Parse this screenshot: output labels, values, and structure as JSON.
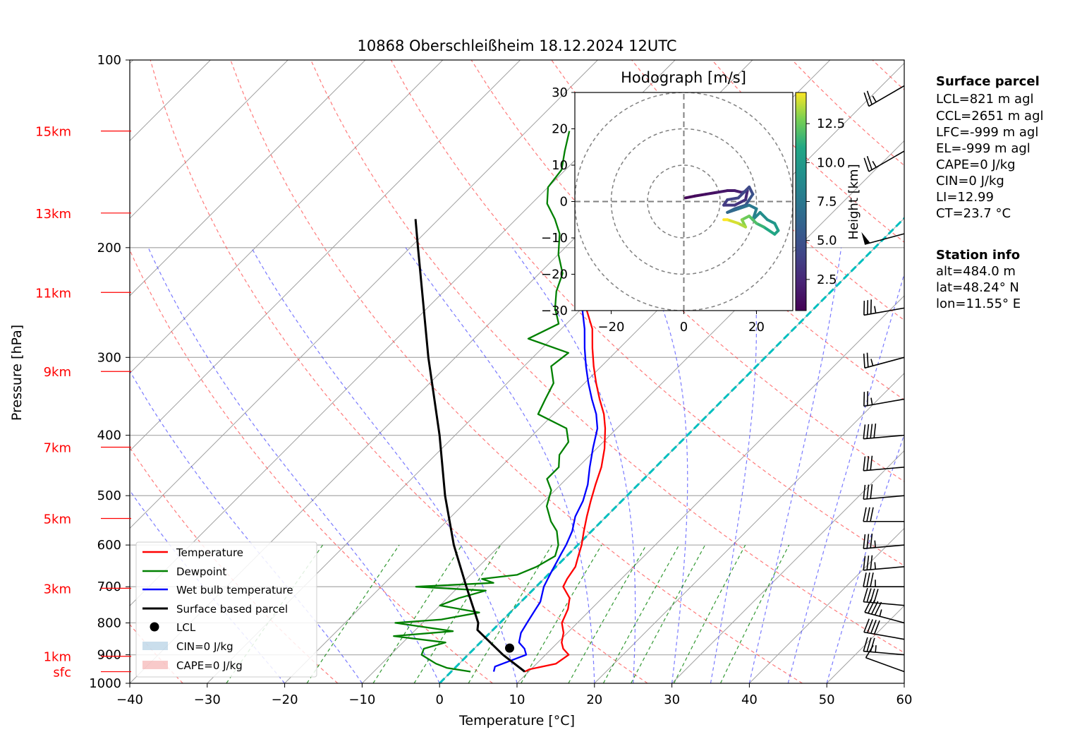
{
  "chart_data": {
    "type": "line",
    "title": "10868 Oberschleißheim 18.12.2024 12UTC",
    "xlabel": "Temperature [°C]",
    "ylabel": "Pressure [hPa]",
    "xlim": [
      -40,
      60
    ],
    "ylim": [
      1000,
      100
    ],
    "y_scale": "log",
    "skew": true,
    "grid": true,
    "x_ticks": [
      "−40",
      "−30",
      "−20",
      "−10",
      "0",
      "10",
      "20",
      "30",
      "40",
      "50",
      "60"
    ],
    "y_ticks": [
      {
        "p": 100,
        "label": "100"
      },
      {
        "p": 200,
        "label": "200"
      },
      {
        "p": 300,
        "label": "300"
      },
      {
        "p": 400,
        "label": "400"
      },
      {
        "p": 500,
        "label": "500"
      },
      {
        "p": 600,
        "label": "600"
      },
      {
        "p": 700,
        "label": "700"
      },
      {
        "p": 800,
        "label": "800"
      },
      {
        "p": 900,
        "label": "900"
      },
      {
        "p": 1000,
        "label": "1000"
      }
    ],
    "height_ticks": [
      {
        "p": 958,
        "label": "sfc"
      },
      {
        "p": 905,
        "label": "1km"
      },
      {
        "p": 704,
        "label": "3km"
      },
      {
        "p": 544,
        "label": "5km"
      },
      {
        "p": 418,
        "label": "7km"
      },
      {
        "p": 316,
        "label": "9km"
      },
      {
        "p": 236,
        "label": "11km"
      },
      {
        "p": 176,
        "label": "13km"
      },
      {
        "p": 130,
        "label": "15km"
      }
    ],
    "dry_adiabats_theta": [
      240,
      260,
      280,
      300,
      320,
      340,
      360,
      380,
      400,
      420,
      440,
      460,
      480,
      500,
      520,
      540
    ],
    "moist_adiabats_start_T": [
      -20,
      -10,
      0,
      10,
      20,
      25,
      30,
      35,
      40,
      45,
      50
    ],
    "mixing_ratios": [
      0.4,
      1,
      2,
      3,
      5,
      8,
      12,
      16,
      20,
      28,
      40
    ],
    "series": [
      {
        "name": "Temperature",
        "color": "#ff0000",
        "points": [
          [
            958,
            9.5
          ],
          [
            950,
            9.8
          ],
          [
            930,
            12.5
          ],
          [
            900,
            13
          ],
          [
            880,
            11.5
          ],
          [
            860,
            10.5
          ],
          [
            830,
            9.5
          ],
          [
            800,
            8.0
          ],
          [
            760,
            7.0
          ],
          [
            730,
            5.8
          ],
          [
            700,
            3.5
          ],
          [
            680,
            3.0
          ],
          [
            650,
            2.5
          ],
          [
            625,
            1.5
          ],
          [
            600,
            0.5
          ],
          [
            570,
            -1.0
          ],
          [
            540,
            -2.5
          ],
          [
            510,
            -4.0
          ],
          [
            480,
            -5.5
          ],
          [
            450,
            -7.0
          ],
          [
            420,
            -9.0
          ],
          [
            390,
            -11.5
          ],
          [
            370,
            -13.5
          ],
          [
            350,
            -16.0
          ],
          [
            330,
            -18.5
          ],
          [
            310,
            -21.0
          ],
          [
            290,
            -23.5
          ],
          [
            270,
            -26.0
          ],
          [
            250,
            -29.5
          ],
          [
            230,
            -33.0
          ],
          [
            215,
            -35.5
          ],
          [
            200,
            -36.0
          ],
          [
            185,
            -35.8
          ],
          [
            170,
            -35.5
          ],
          [
            160,
            -34.5
          ],
          [
            150,
            -34.2
          ],
          [
            145,
            -35.0
          ],
          [
            140,
            -33.5
          ],
          [
            133,
            -33.5
          ],
          [
            125,
            -33.0
          ],
          [
            115,
            -32.5
          ]
        ]
      },
      {
        "name": "Dewpoint",
        "color": "#008000",
        "points": [
          [
            958,
            2.5
          ],
          [
            945,
            -1.0
          ],
          [
            930,
            -3.0
          ],
          [
            900,
            -6.0
          ],
          [
            880,
            -6.5
          ],
          [
            860,
            -4.5
          ],
          [
            840,
            -12.0
          ],
          [
            825,
            -5.0
          ],
          [
            800,
            -13.5
          ],
          [
            790,
            -8.0
          ],
          [
            770,
            -4.0
          ],
          [
            750,
            -10.0
          ],
          [
            730,
            -8.5
          ],
          [
            710,
            -6.0
          ],
          [
            700,
            -15.5
          ],
          [
            690,
            -6.0
          ],
          [
            680,
            -8.0
          ],
          [
            670,
            -4.0
          ],
          [
            650,
            -2.5
          ],
          [
            625,
            -1.5
          ],
          [
            600,
            -2.5
          ],
          [
            570,
            -4.5
          ],
          [
            550,
            -6.5
          ],
          [
            520,
            -9.0
          ],
          [
            490,
            -10.5
          ],
          [
            470,
            -12.5
          ],
          [
            450,
            -12.5
          ],
          [
            430,
            -14.0
          ],
          [
            410,
            -14.5
          ],
          [
            390,
            -16.5
          ],
          [
            370,
            -22.0
          ],
          [
            350,
            -23.0
          ],
          [
            330,
            -24.0
          ],
          [
            310,
            -26.5
          ],
          [
            295,
            -26.0
          ],
          [
            280,
            -33.0
          ],
          [
            265,
            -31.0
          ],
          [
            250,
            -33.5
          ],
          [
            235,
            -35.5
          ],
          [
            220,
            -37.0
          ],
          [
            205,
            -40.0
          ],
          [
            190,
            -42.5
          ],
          [
            180,
            -45.0
          ],
          [
            170,
            -48.0
          ],
          [
            160,
            -50.0
          ],
          [
            150,
            -50.5
          ],
          [
            140,
            -52.5
          ],
          [
            130,
            -54.5
          ]
        ]
      },
      {
        "name": "Wet bulb temperature",
        "color": "#0000ff",
        "points": [
          [
            958,
            5.5
          ],
          [
            940,
            5.0
          ],
          [
            900,
            7.5
          ],
          [
            880,
            6.5
          ],
          [
            860,
            5.0
          ],
          [
            830,
            4.0
          ],
          [
            800,
            3.5
          ],
          [
            770,
            3.0
          ],
          [
            740,
            2.5
          ],
          [
            700,
            1.0
          ],
          [
            680,
            0.5
          ],
          [
            660,
            0.0
          ],
          [
            640,
            -0.5
          ],
          [
            620,
            -1.0
          ],
          [
            600,
            -1.5
          ],
          [
            570,
            -2.5
          ],
          [
            540,
            -4.0
          ],
          [
            510,
            -5.0
          ],
          [
            480,
            -6.5
          ],
          [
            450,
            -8.5
          ],
          [
            420,
            -10.5
          ],
          [
            390,
            -12.5
          ],
          [
            370,
            -14.5
          ],
          [
            350,
            -17.0
          ],
          [
            330,
            -19.5
          ],
          [
            310,
            -22.0
          ],
          [
            290,
            -24.5
          ],
          [
            270,
            -27.0
          ],
          [
            250,
            -30.0
          ],
          [
            230,
            -33.5
          ],
          [
            215,
            -36.0
          ],
          [
            200,
            -36.5
          ],
          [
            185,
            -36.2
          ],
          [
            170,
            -36.0
          ],
          [
            160,
            -35.0
          ],
          [
            150,
            -34.8
          ],
          [
            145,
            -35.5
          ],
          [
            140,
            -34.0
          ],
          [
            133,
            -34.0
          ],
          [
            125,
            -33.5
          ],
          [
            115,
            -33.0
          ]
        ]
      },
      {
        "name": "Surface based parcel",
        "color": "#000000",
        "points": [
          [
            958,
            9.5
          ],
          [
            900,
            4.5
          ],
          [
            821,
            -2.0
          ],
          [
            800,
            -2.8
          ],
          [
            700,
            -9.0
          ],
          [
            600,
            -16.0
          ],
          [
            500,
            -23.5
          ],
          [
            400,
            -32.0
          ],
          [
            300,
            -43.5
          ],
          [
            200,
            -59.0
          ],
          [
            180,
            -63.0
          ]
        ]
      }
    ],
    "freezing_level_color": "#00bfbf",
    "lcl": {
      "p": 878,
      "t": 4.5,
      "label": "LCL"
    },
    "legend": {
      "placement": "lower-left",
      "entries": [
        "Temperature",
        "Dewpoint",
        "Wet bulb temperature",
        "Surface based parcel",
        "LCL",
        "CIN=0 J/kg",
        "CAPE=0 J/kg"
      ]
    },
    "wind_barbs": [
      {
        "p": 958,
        "speed": 10,
        "dir": 250
      },
      {
        "p": 900,
        "speed": 35,
        "dir": 265
      },
      {
        "p": 850,
        "speed": 40,
        "dir": 260
      },
      {
        "p": 800,
        "speed": 45,
        "dir": 255
      },
      {
        "p": 750,
        "speed": 40,
        "dir": 265
      },
      {
        "p": 700,
        "speed": 35,
        "dir": 270
      },
      {
        "p": 650,
        "speed": 35,
        "dir": 275
      },
      {
        "p": 600,
        "speed": 35,
        "dir": 275
      },
      {
        "p": 550,
        "speed": 30,
        "dir": 270
      },
      {
        "p": 500,
        "speed": 30,
        "dir": 275
      },
      {
        "p": 450,
        "speed": 30,
        "dir": 275
      },
      {
        "p": 400,
        "speed": 40,
        "dir": 275
      },
      {
        "p": 350,
        "speed": 25,
        "dir": 280
      },
      {
        "p": 300,
        "speed": 25,
        "dir": 285
      },
      {
        "p": 250,
        "speed": 35,
        "dir": 280
      },
      {
        "p": 190,
        "speed": 50,
        "dir": 285
      },
      {
        "p": 140,
        "speed": 25,
        "dir": 300
      },
      {
        "p": 110,
        "speed": 25,
        "dir": 300
      }
    ],
    "hodograph": {
      "title": "Hodograph [m/s]",
      "xlim": [
        -30,
        30
      ],
      "ylim": [
        -30,
        30
      ],
      "rings": [
        10,
        20,
        30
      ],
      "x_ticks": [
        "−20",
        "0",
        "20"
      ],
      "y_ticks": [
        "30",
        "20",
        "10",
        "0",
        "−10",
        "−20",
        "−30"
      ],
      "colorbar_label": "Height [km]",
      "colorbar_ticks": [
        "2.5",
        "5.0",
        "7.5",
        "10.0",
        "12.5"
      ],
      "colorbar_range": [
        0.5,
        14.5
      ],
      "points": [
        {
          "u": 0.5,
          "v": 1,
          "h": 0.5
        },
        {
          "u": 3,
          "v": 1.5,
          "h": 0.8
        },
        {
          "u": 6,
          "v": 2,
          "h": 1.0
        },
        {
          "u": 9,
          "v": 2.5,
          "h": 1.3
        },
        {
          "u": 12,
          "v": 3,
          "h": 1.6
        },
        {
          "u": 14,
          "v": 3,
          "h": 1.8
        },
        {
          "u": 16,
          "v": 2.5,
          "h": 2.0
        },
        {
          "u": 17.5,
          "v": 3,
          "h": 2.3
        },
        {
          "u": 17,
          "v": 0.5,
          "h": 2.6
        },
        {
          "u": 14,
          "v": -1,
          "h": 3.0
        },
        {
          "u": 11,
          "v": -1,
          "h": 3.3
        },
        {
          "u": 12,
          "v": 0.5,
          "h": 3.6
        },
        {
          "u": 15,
          "v": 1,
          "h": 3.9
        },
        {
          "u": 18,
          "v": 4,
          "h": 4.2
        },
        {
          "u": 19,
          "v": 2,
          "h": 4.5
        },
        {
          "u": 17,
          "v": -1,
          "h": 5.0
        },
        {
          "u": 14,
          "v": -2,
          "h": 5.5
        },
        {
          "u": 12,
          "v": -3,
          "h": 6.0
        },
        {
          "u": 15,
          "v": -2,
          "h": 6.5
        },
        {
          "u": 18,
          "v": -1,
          "h": 7.0
        },
        {
          "u": 20,
          "v": -2,
          "h": 7.5
        },
        {
          "u": 19,
          "v": -5,
          "h": 8.0
        },
        {
          "u": 21,
          "v": -3,
          "h": 8.5
        },
        {
          "u": 23,
          "v": -5,
          "h": 9.0
        },
        {
          "u": 25,
          "v": -6,
          "h": 9.5
        },
        {
          "u": 26,
          "v": -8,
          "h": 10.0
        },
        {
          "u": 25,
          "v": -9,
          "h": 10.5
        },
        {
          "u": 22,
          "v": -7,
          "h": 11.0
        },
        {
          "u": 20,
          "v": -6,
          "h": 11.5
        },
        {
          "u": 18,
          "v": -4,
          "h": 12.0
        },
        {
          "u": 16,
          "v": -5,
          "h": 12.5
        },
        {
          "u": 17,
          "v": -7,
          "h": 13.0
        },
        {
          "u": 15,
          "v": -6,
          "h": 13.5
        },
        {
          "u": 12,
          "v": -5,
          "h": 14.0
        },
        {
          "u": 11,
          "v": -5,
          "h": 14.5
        }
      ]
    }
  },
  "surface_parcel": {
    "heading": "Surface parcel",
    "lines": [
      "LCL=821 m agl",
      "CCL=2651 m agl",
      "LFC=-999 m agl",
      "EL=-999 m agl",
      "CAPE=0 J/kg",
      "CIN=0 J/kg",
      "LI=12.99",
      "CT=23.7 °C"
    ]
  },
  "station_info": {
    "heading": "Station info",
    "lines": [
      "alt=484.0 m",
      "lat=48.24° N",
      "lon=11.55° E"
    ]
  }
}
